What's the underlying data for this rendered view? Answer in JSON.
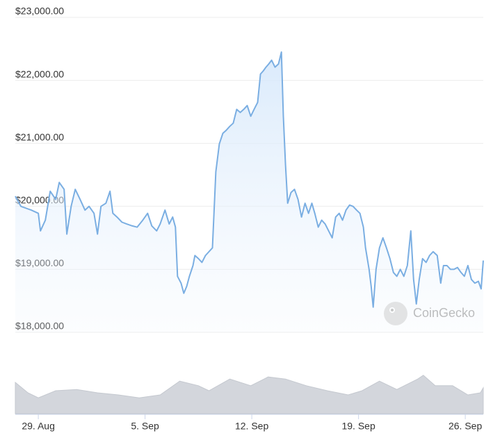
{
  "chart_data": {
    "type": "line",
    "color": "#7aaee2",
    "x": [
      27.49,
      27.86,
      28.54,
      29,
      29.14,
      29.46,
      29.78,
      30.14,
      30.37,
      30.69,
      30.87,
      31.15,
      31.42,
      31.74,
      32.06,
      32.33,
      32.65,
      32.88,
      33.11,
      33.43,
      33.7,
      33.89,
      34.16,
      34.48,
      34.8,
      35.16,
      35.48,
      35.85,
      36.17,
      36.44,
      36.76,
      36.99,
      37.31,
      37.58,
      37.81,
      37.99,
      38.13,
      38.36,
      38.54,
      38.73,
      38.91,
      39.14,
      39.27,
      39.5,
      39.73,
      39.96,
      40.19,
      40.42,
      40.64,
      40.87,
      41.1,
      41.33,
      41.56,
      41.78,
      42.01,
      42.24,
      42.47,
      42.7,
      42.93,
      43.15,
      43.38,
      43.57,
      43.75,
      43.93,
      44.11,
      44.3,
      44.52,
      44.75,
      44.94,
      45.07,
      45.21,
      45.35,
      45.57,
      45.8,
      46.03,
      46.26,
      46.49,
      46.72,
      46.94,
      47.13,
      47.36,
      47.58,
      47.81,
      48.04,
      48.27,
      48.5,
      48.73,
      48.95,
      49.18,
      49.41,
      49.64,
      49.87,
      50.09,
      50.32,
      50.46,
      50.69,
      50.83,
      50.96,
      51.15,
      51.37,
      51.6,
      51.83,
      52.06,
      52.29,
      52.51,
      52.74,
      52.97,
      53.2,
      53.43,
      53.61,
      53.79,
      53.98,
      54.2,
      54.43,
      54.66,
      54.89,
      55.16,
      55.39,
      55.57,
      55.8,
      56.03,
      56.26,
      56.49,
      56.72,
      56.94,
      57.17,
      57.4,
      57.63,
      57.86,
      58.04,
      58.18
    ],
    "values": [
      20160,
      20000,
      19940,
      19890,
      19610,
      19780,
      20240,
      20110,
      20380,
      20270,
      19560,
      20000,
      20270,
      20110,
      19940,
      20000,
      19890,
      19560,
      20000,
      20050,
      20240,
      19890,
      19830,
      19750,
      19720,
      19690,
      19670,
      19780,
      19890,
      19690,
      19610,
      19720,
      19940,
      19720,
      19830,
      19670,
      18890,
      18780,
      18620,
      18730,
      18890,
      19060,
      19220,
      19170,
      19110,
      19220,
      19280,
      19340,
      20550,
      20990,
      21160,
      21210,
      21270,
      21320,
      21540,
      21490,
      21540,
      21600,
      21430,
      21540,
      21650,
      22100,
      22150,
      22210,
      22260,
      22320,
      22210,
      22260,
      22450,
      21430,
      20660,
      20050,
      20220,
      20270,
      20110,
      19830,
      20050,
      19890,
      20050,
      19890,
      19670,
      19780,
      19720,
      19610,
      19500,
      19830,
      19890,
      19780,
      19940,
      20020,
      20000,
      19940,
      19890,
      19670,
      19340,
      19000,
      18730,
      18400,
      19000,
      19340,
      19500,
      19340,
      19170,
      18950,
      18890,
      19000,
      18890,
      19060,
      19610,
      18840,
      18450,
      18840,
      19170,
      19110,
      19220,
      19280,
      19220,
      18780,
      19060,
      19060,
      19000,
      19000,
      19030,
      18950,
      18890,
      19060,
      18840,
      18780,
      18810,
      18690,
      19140
    ],
    "xlim": [
      27.49,
      58.18
    ],
    "xticks": [
      {
        "value": 29,
        "label": "29. Aug"
      },
      {
        "value": 36,
        "label": "5. Sep"
      },
      {
        "value": 43,
        "label": "12. Sep"
      },
      {
        "value": 50,
        "label": "19. Sep"
      },
      {
        "value": 57,
        "label": "26. Sep"
      }
    ],
    "ylim": [
      18000,
      23000
    ],
    "yticks": [
      {
        "value": 18000,
        "label": "$18,000.00"
      },
      {
        "value": 19000,
        "label": "$19,000.00"
      },
      {
        "value": 20000,
        "label": "$20,000.00"
      },
      {
        "value": 21000,
        "label": "$21,000.00"
      },
      {
        "value": 22000,
        "label": "$22,000.00"
      },
      {
        "value": 23000,
        "label": "$23,000.00"
      }
    ],
    "grid": true,
    "watermark": "CoinGecko",
    "volume": {
      "color": "#d3d6dc",
      "x": [
        27.49,
        28.32,
        29,
        30.14,
        31.51,
        32.88,
        34.25,
        35.62,
        36.99,
        38.27,
        39.5,
        40.19,
        41.56,
        42.93,
        44.07,
        45.21,
        46.58,
        47.95,
        49.32,
        50.23,
        51.37,
        52.51,
        53.88,
        54.25,
        55.03,
        56.17,
        57.17,
        57.99,
        58.18
      ],
      "values": [
        75,
        50,
        38,
        55,
        58,
        50,
        45,
        38,
        45,
        78,
        67,
        55,
        83,
        67,
        88,
        83,
        67,
        55,
        45,
        55,
        78,
        58,
        83,
        92,
        67,
        67,
        45,
        50,
        62
      ],
      "y2lim": [
        0,
        100
      ]
    }
  }
}
